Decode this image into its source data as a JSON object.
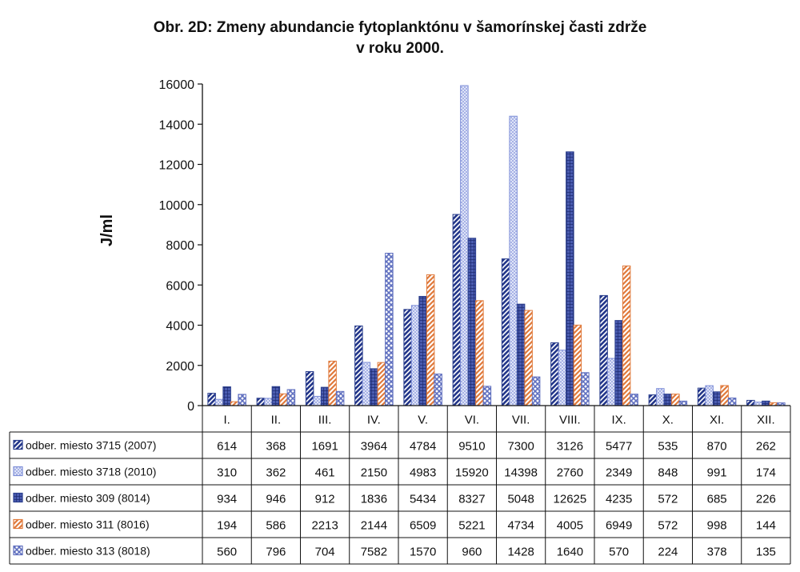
{
  "chart_data": {
    "type": "bar",
    "title": "Obr. 2D: Zmeny abundancie fytoplanktónu v šamorínskej časti zdrže",
    "subtitle": "v roku 2000.",
    "xlabel": "",
    "ylabel": "J/ml",
    "ylim": [
      0,
      16000
    ],
    "yticks": [
      0,
      2000,
      4000,
      6000,
      8000,
      10000,
      12000,
      14000,
      16000
    ],
    "grid": false,
    "legend": "data-table-below",
    "categories": [
      "I.",
      "II.",
      "III.",
      "IV.",
      "V.",
      "VI.",
      "VII.",
      "VIII.",
      "IX.",
      "X.",
      "XI.",
      "XII."
    ],
    "series": [
      {
        "name": "odber. miesto 3715 (2007)",
        "color": "#2b3f8e",
        "pattern": "diag-dark",
        "values": [
          614,
          368,
          1691,
          3964,
          4784,
          9510,
          7300,
          3126,
          5477,
          535,
          870,
          262
        ]
      },
      {
        "name": "odber. miesto 3718 (2010)",
        "color": "#7f8fd8",
        "pattern": "dots-light",
        "values": [
          310,
          362,
          461,
          2150,
          4983,
          15920,
          14398,
          2760,
          2349,
          848,
          991,
          174
        ]
      },
      {
        "name": "odber. miesto 309 (8014)",
        "color": "#2b3f8e",
        "pattern": "grid-dark",
        "values": [
          934,
          946,
          912,
          1836,
          5434,
          8327,
          5048,
          12625,
          4235,
          572,
          685,
          226
        ]
      },
      {
        "name": "odber. miesto 311 (8016)",
        "color": "#e07a3c",
        "pattern": "diag-orange",
        "values": [
          194,
          586,
          2213,
          2144,
          6509,
          5221,
          4734,
          4005,
          6949,
          572,
          998,
          144
        ]
      },
      {
        "name": "odber. miesto 313 (8018)",
        "color": "#5f6fbf",
        "pattern": "cross-blue",
        "values": [
          560,
          796,
          704,
          7582,
          1570,
          960,
          1428,
          1640,
          570,
          224,
          378,
          135
        ]
      }
    ]
  }
}
